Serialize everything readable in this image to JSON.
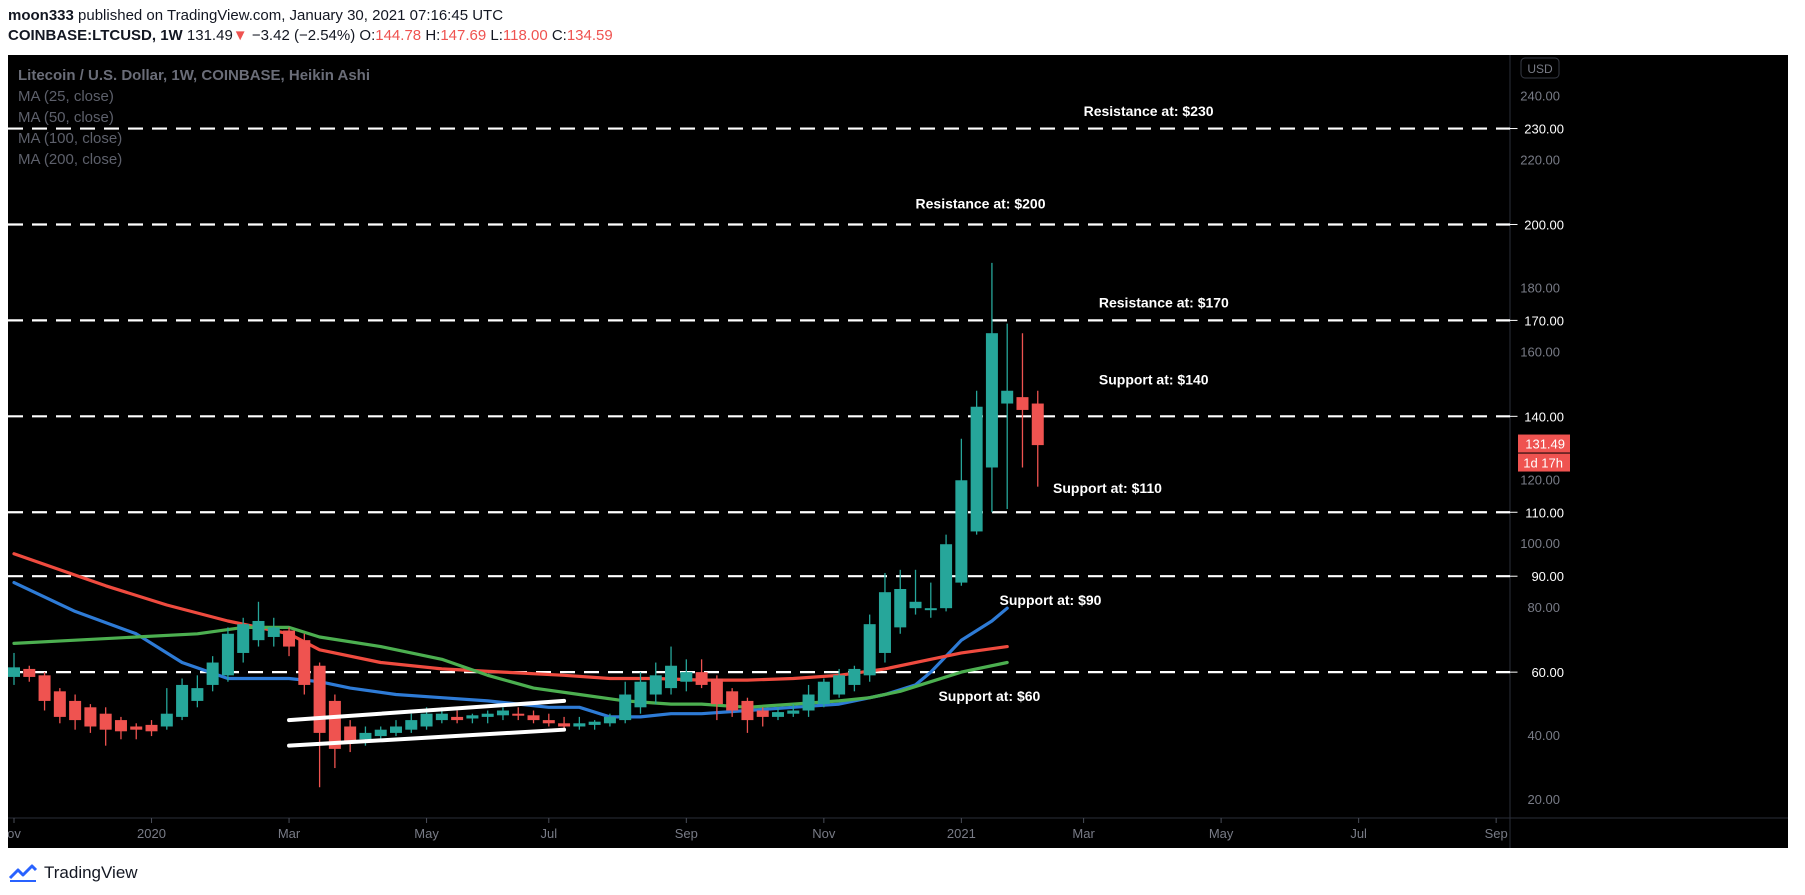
{
  "header": {
    "author": "moon333",
    "published_text": "published on TradingView.com, January 30, 2021 07:16:45 UTC",
    "symbol": "COINBASE:LTCUSD, 1W",
    "price": "131.49",
    "change": "−3.42 (−2.54%)",
    "o_label": "O:",
    "o_value": "144.78",
    "h_label": "H:",
    "h_value": "147.69",
    "l_label": "L:",
    "l_value": "118.00",
    "c_label": "C:",
    "c_value": "134.59"
  },
  "legend": {
    "title": "Litecoin / U.S. Dollar, 1W, COINBASE, Heikin Ashi",
    "items": [
      "MA (25, close)",
      "MA (50, close)",
      "MA (100, close)",
      "MA (200, close)"
    ]
  },
  "footer": {
    "brand": "TradingView"
  },
  "colors": {
    "background": "#000000",
    "up": "#26a69a",
    "down": "#ef5350",
    "ma_blue": "#2e7bd6",
    "ma_red": "#ef4b3f",
    "ma_green": "#4caf50",
    "axis_text": "#787b86"
  },
  "chart_data": {
    "type": "candlestick",
    "currency_label": "USD",
    "ylim": [
      5,
      253
    ],
    "y_ticks": [
      20,
      40,
      60,
      80,
      100,
      120,
      140,
      160,
      180,
      200,
      220,
      240
    ],
    "highlighted_ticks": [
      "60.00",
      "90.00",
      "110.00",
      "140.00",
      "170.00",
      "200.00",
      "230.00"
    ],
    "last_price": "131.49",
    "countdown": "1d 17h",
    "x_labels": [
      {
        "label": "ov",
        "i": 0
      },
      {
        "label": "2020",
        "i": 9
      },
      {
        "label": "Mar",
        "i": 18
      },
      {
        "label": "May",
        "i": 27
      },
      {
        "label": "Jul",
        "i": 35
      },
      {
        "label": "Sep",
        "i": 44
      },
      {
        "label": "Nov",
        "i": 53
      },
      {
        "label": "2021",
        "i": 62
      },
      {
        "label": "Mar",
        "i": 70
      },
      {
        "label": "May",
        "i": 79
      },
      {
        "label": "Jul",
        "i": 88
      },
      {
        "label": "Sep",
        "i": 97
      }
    ],
    "candles": [
      {
        "o": 58.5,
        "h": 66,
        "l": 56,
        "c": 61.5
      },
      {
        "o": 61,
        "h": 62,
        "l": 57,
        "c": 58.5
      },
      {
        "o": 59,
        "h": 60,
        "l": 48,
        "c": 51
      },
      {
        "o": 54,
        "h": 55,
        "l": 44,
        "c": 46
      },
      {
        "o": 51,
        "h": 53,
        "l": 42,
        "c": 45
      },
      {
        "o": 49,
        "h": 50,
        "l": 41,
        "c": 43
      },
      {
        "o": 47,
        "h": 49,
        "l": 37,
        "c": 42
      },
      {
        "o": 45,
        "h": 46,
        "l": 39,
        "c": 41.5
      },
      {
        "o": 43,
        "h": 44,
        "l": 39,
        "c": 42
      },
      {
        "o": 43.5,
        "h": 45,
        "l": 40,
        "c": 41.5
      },
      {
        "o": 43,
        "h": 55,
        "l": 42,
        "c": 47
      },
      {
        "o": 46,
        "h": 58,
        "l": 45,
        "c": 56
      },
      {
        "o": 51,
        "h": 59,
        "l": 49,
        "c": 55
      },
      {
        "o": 56,
        "h": 65,
        "l": 54,
        "c": 63
      },
      {
        "o": 59,
        "h": 74,
        "l": 57,
        "c": 72
      },
      {
        "o": 66,
        "h": 77,
        "l": 63,
        "c": 75
      },
      {
        "o": 70,
        "h": 82,
        "l": 68,
        "c": 76
      },
      {
        "o": 71,
        "h": 77,
        "l": 68,
        "c": 74
      },
      {
        "o": 73,
        "h": 74,
        "l": 65,
        "c": 68
      },
      {
        "o": 70,
        "h": 72,
        "l": 53,
        "c": 56
      },
      {
        "o": 62,
        "h": 63,
        "l": 24,
        "c": 41
      },
      {
        "o": 51,
        "h": 53,
        "l": 30,
        "c": 36
      },
      {
        "o": 43,
        "h": 45,
        "l": 35,
        "c": 38
      },
      {
        "o": 39,
        "h": 43,
        "l": 37,
        "c": 41
      },
      {
        "o": 40,
        "h": 43,
        "l": 39,
        "c": 42
      },
      {
        "o": 41,
        "h": 45,
        "l": 40,
        "c": 43
      },
      {
        "o": 42,
        "h": 47,
        "l": 41,
        "c": 45
      },
      {
        "o": 43,
        "h": 49,
        "l": 42,
        "c": 47
      },
      {
        "o": 45,
        "h": 49,
        "l": 44,
        "c": 47
      },
      {
        "o": 46,
        "h": 48,
        "l": 44,
        "c": 45
      },
      {
        "o": 45.5,
        "h": 47,
        "l": 44,
        "c": 46.5
      },
      {
        "o": 46,
        "h": 48,
        "l": 44,
        "c": 47
      },
      {
        "o": 46.5,
        "h": 49,
        "l": 45,
        "c": 48
      },
      {
        "o": 47,
        "h": 49,
        "l": 45,
        "c": 46.5
      },
      {
        "o": 46.5,
        "h": 48,
        "l": 44,
        "c": 45
      },
      {
        "o": 45,
        "h": 47,
        "l": 43,
        "c": 44
      },
      {
        "o": 44,
        "h": 46,
        "l": 42,
        "c": 43
      },
      {
        "o": 43,
        "h": 46,
        "l": 42,
        "c": 44
      },
      {
        "o": 43.5,
        "h": 45,
        "l": 42,
        "c": 44.5
      },
      {
        "o": 44,
        "h": 47,
        "l": 43,
        "c": 46
      },
      {
        "o": 45,
        "h": 57,
        "l": 44,
        "c": 53
      },
      {
        "o": 49,
        "h": 60,
        "l": 47,
        "c": 57
      },
      {
        "o": 53,
        "h": 63,
        "l": 50,
        "c": 59
      },
      {
        "o": 55,
        "h": 68,
        "l": 53,
        "c": 62
      },
      {
        "o": 57,
        "h": 64,
        "l": 54,
        "c": 60
      },
      {
        "o": 60,
        "h": 64,
        "l": 55,
        "c": 56
      },
      {
        "o": 58,
        "h": 59,
        "l": 45,
        "c": 50
      },
      {
        "o": 54,
        "h": 55,
        "l": 46,
        "c": 48
      },
      {
        "o": 51,
        "h": 52,
        "l": 41,
        "c": 45
      },
      {
        "o": 48,
        "h": 49,
        "l": 43,
        "c": 46
      },
      {
        "o": 46,
        "h": 49,
        "l": 45,
        "c": 47.5
      },
      {
        "o": 47,
        "h": 50,
        "l": 46,
        "c": 48
      },
      {
        "o": 48,
        "h": 56,
        "l": 46,
        "c": 53
      },
      {
        "o": 50,
        "h": 58,
        "l": 49,
        "c": 57
      },
      {
        "o": 53,
        "h": 61,
        "l": 52,
        "c": 59
      },
      {
        "o": 56,
        "h": 62,
        "l": 54,
        "c": 61
      },
      {
        "o": 59,
        "h": 78,
        "l": 57,
        "c": 75
      },
      {
        "o": 66,
        "h": 91,
        "l": 63,
        "c": 85
      },
      {
        "o": 74,
        "h": 92,
        "l": 72,
        "c": 86
      },
      {
        "o": 80,
        "h": 92,
        "l": 78,
        "c": 82
      },
      {
        "o": 80,
        "h": 88,
        "l": 77,
        "c": 80
      },
      {
        "o": 80,
        "h": 103,
        "l": 79,
        "c": 100
      },
      {
        "o": 88,
        "h": 133,
        "l": 87,
        "c": 120
      },
      {
        "o": 104,
        "h": 148,
        "l": 103,
        "c": 143
      },
      {
        "o": 124,
        "h": 188,
        "l": 110,
        "c": 166
      },
      {
        "o": 144,
        "h": 169,
        "l": 111,
        "c": 148
      },
      {
        "o": 146,
        "h": 166,
        "l": 124,
        "c": 142
      },
      {
        "o": 144,
        "h": 148,
        "l": 118,
        "c": 131
      }
    ],
    "series": [
      {
        "name": "MA (25, close)",
        "color": "#2e7bd6",
        "points": [
          [
            0,
            88
          ],
          [
            4,
            79
          ],
          [
            8,
            72
          ],
          [
            11,
            63
          ],
          [
            14,
            58
          ],
          [
            18,
            58
          ],
          [
            20,
            57
          ],
          [
            22,
            55
          ],
          [
            25,
            53
          ],
          [
            28,
            52
          ],
          [
            31,
            51
          ],
          [
            35,
            49
          ],
          [
            37,
            49
          ],
          [
            39,
            46
          ],
          [
            41,
            46
          ],
          [
            43,
            47
          ],
          [
            45,
            47
          ],
          [
            48,
            48
          ],
          [
            51,
            49
          ],
          [
            54,
            50
          ],
          [
            57,
            53
          ],
          [
            59,
            56
          ],
          [
            60,
            60
          ],
          [
            62,
            70
          ],
          [
            64,
            76
          ],
          [
            65,
            80
          ]
        ]
      },
      {
        "name": "MA (50, close)",
        "color": "#ef4b3f",
        "points": [
          [
            0,
            97
          ],
          [
            3,
            92
          ],
          [
            6,
            87
          ],
          [
            10,
            81
          ],
          [
            14,
            76
          ],
          [
            18,
            72
          ],
          [
            20,
            67
          ],
          [
            24,
            63
          ],
          [
            28,
            61
          ],
          [
            32,
            60
          ],
          [
            36,
            59
          ],
          [
            39,
            58
          ],
          [
            42,
            58
          ],
          [
            45,
            57.5
          ],
          [
            48,
            57.5
          ],
          [
            51,
            58
          ],
          [
            54,
            59
          ],
          [
            57,
            61
          ],
          [
            60,
            64
          ],
          [
            62,
            66
          ],
          [
            65,
            68
          ]
        ]
      },
      {
        "name": "MA (100, close)",
        "color": "#4caf50",
        "points": [
          [
            0,
            69
          ],
          [
            4,
            70
          ],
          [
            8,
            71
          ],
          [
            12,
            72
          ],
          [
            15,
            74
          ],
          [
            18,
            74
          ],
          [
            20,
            71
          ],
          [
            24,
            68
          ],
          [
            28,
            64
          ],
          [
            31,
            59
          ],
          [
            34,
            55
          ],
          [
            37,
            53
          ],
          [
            40,
            51
          ],
          [
            43,
            50
          ],
          [
            45,
            50
          ],
          [
            48,
            49
          ],
          [
            51,
            50
          ],
          [
            54,
            51
          ],
          [
            56,
            52
          ],
          [
            58,
            54
          ],
          [
            60,
            57
          ],
          [
            62,
            60
          ],
          [
            65,
            63
          ]
        ]
      }
    ],
    "pattern_lines": [
      {
        "name": "upper",
        "from": [
          18,
          45
        ],
        "to": [
          36,
          51
        ]
      },
      {
        "name": "lower",
        "from": [
          18,
          37
        ],
        "to": [
          36,
          42
        ]
      }
    ],
    "levels": [
      {
        "value": 230,
        "label": "Resistance at: $230",
        "label_i": 70
      },
      {
        "value": 200,
        "label": "Resistance at: $200",
        "label_i": 59
      },
      {
        "value": 170,
        "label": "Resistance at: $170",
        "label_i": 71
      },
      {
        "value": 140,
        "label": "Support at: $140",
        "label_i": 71
      },
      {
        "value": 110,
        "label": "Support at: $110",
        "label_i": 68
      },
      {
        "value": 90,
        "label": "Support at: $90",
        "label_i": 64.5
      },
      {
        "value": 60,
        "label": "Support at: $60",
        "label_i": 60.5
      }
    ],
    "level_label_values": [
      {
        "y": 234
      },
      {
        "y": 205
      },
      {
        "y": 174
      },
      {
        "y": 150
      },
      {
        "y": 116
      },
      {
        "y": 81
      },
      {
        "y": 51
      }
    ]
  }
}
